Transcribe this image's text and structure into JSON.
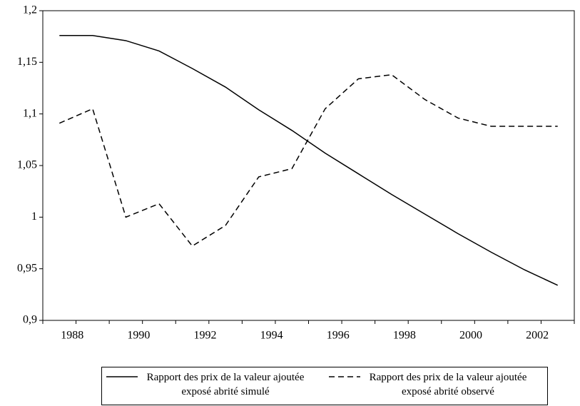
{
  "chart_data": {
    "type": "line",
    "categories": [
      "1988",
      null,
      "1990",
      null,
      "1992",
      null,
      "1994",
      null,
      "1996",
      null,
      "1998",
      null,
      "2000",
      null,
      "2002",
      null
    ],
    "series": [
      {
        "name": "Rapport des prix de la valeur ajoutée exposé abrité simulé",
        "color": "#000000",
        "dash": "solid",
        "values": [
          1.176,
          1.176,
          1.171,
          1.161,
          1.144,
          1.126,
          1.104,
          1.084,
          1.062,
          1.042,
          1.022,
          1.003,
          0.984,
          0.966,
          0.949,
          0.934
        ]
      },
      {
        "name": "Rapport des prix de la valeur ajoutée exposé abrité observé",
        "color": "#000000",
        "dash": "dashed",
        "values": [
          1.091,
          1.105,
          1.0,
          1.013,
          0.972,
          0.992,
          1.039,
          1.047,
          1.105,
          1.134,
          1.138,
          1.114,
          1.096,
          1.088,
          1.088,
          1.088
        ]
      }
    ],
    "ylim": [
      0.9,
      1.2
    ],
    "yticks": [
      {
        "value": 0.9,
        "label": "0,9"
      },
      {
        "value": 0.95,
        "label": "0,95"
      },
      1,
      {
        "value": 1.05,
        "label": "1,05"
      },
      {
        "value": 1.1,
        "label": "1,1"
      },
      {
        "value": 1.15,
        "label": "1,15"
      },
      {
        "value": 1.2,
        "label": "1,2"
      }
    ],
    "grid": false,
    "legend": "bottom"
  }
}
